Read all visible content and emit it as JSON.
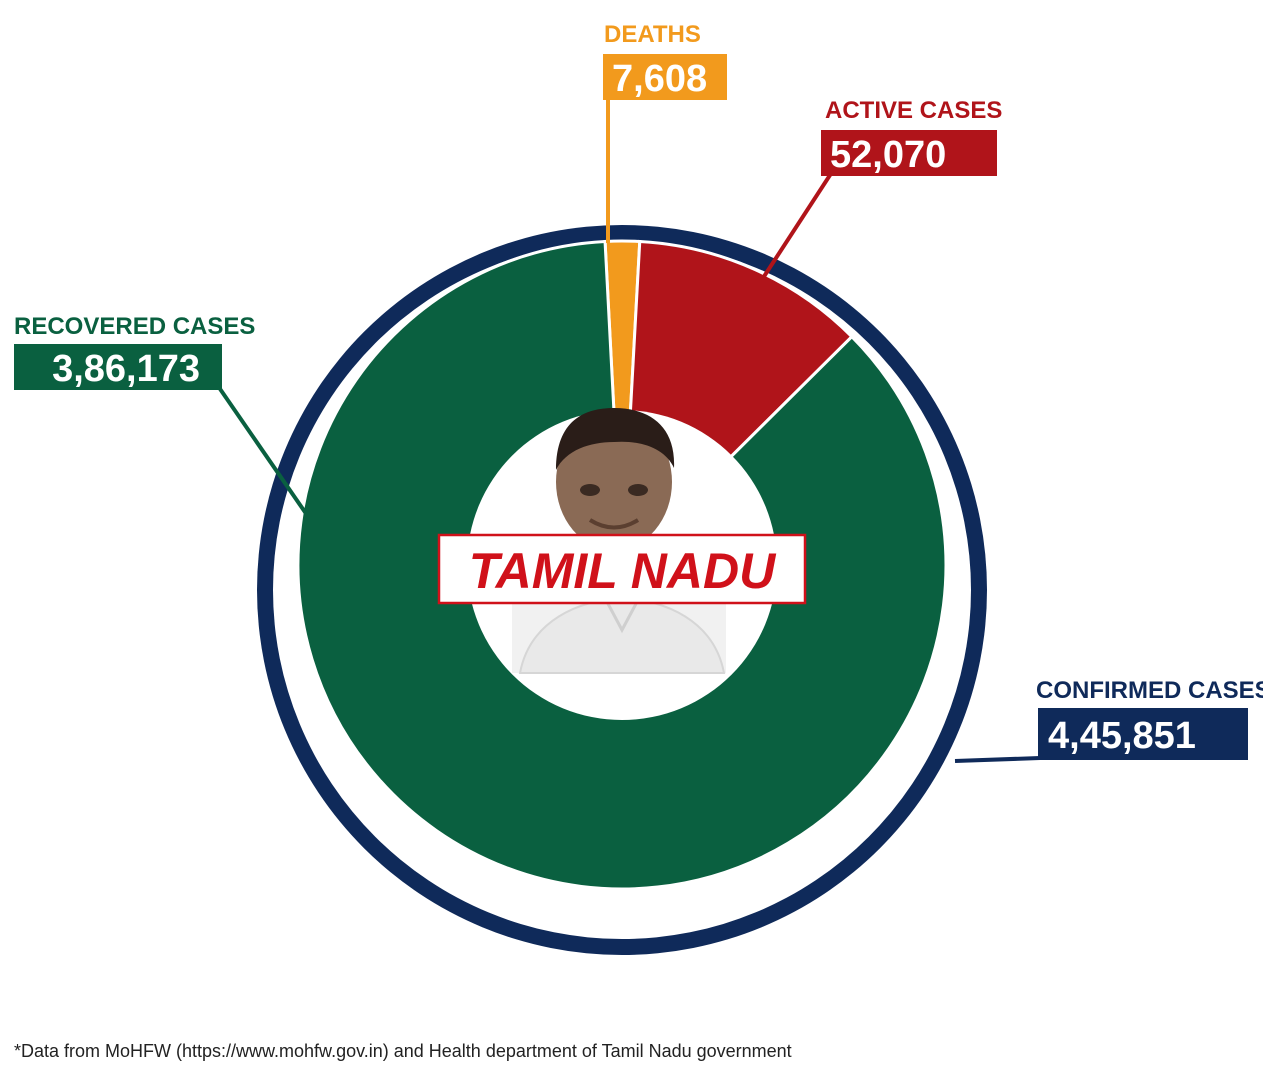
{
  "chart_data": {
    "type": "pie",
    "total": {
      "label": "CONFIRMED CASES",
      "value": 445851,
      "display": "4,45,851",
      "color": "#0f2a5a"
    },
    "slices": [
      {
        "key": "deaths",
        "label": "DEATHS",
        "value": 7608,
        "display": "7,608",
        "color": "#f29a1d"
      },
      {
        "key": "active",
        "label": "ACTIVE CASES",
        "value": 52070,
        "display": "52,070",
        "color": "#b0141a"
      },
      {
        "key": "recovered",
        "label": "RECOVERED CASES",
        "value": 386173,
        "display": "3,86,173",
        "color": "#0a6040"
      }
    ],
    "center_title": "TAMIL NADU",
    "center_title_color": "#d0111a"
  },
  "footnote": "*Data from MoHFW (https://www.mohfw.gov.in) and Health department of Tamil Nadu government",
  "portrait_icon": "person-portrait-icon"
}
